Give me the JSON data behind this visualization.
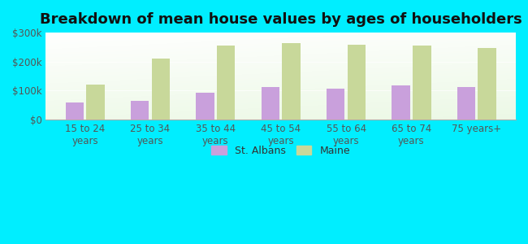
{
  "title": "Breakdown of mean house values by ages of householders",
  "categories": [
    "15 to 24\nyears",
    "25 to 34\nyears",
    "35 to 44\nyears",
    "45 to 54\nyears",
    "55 to 64\nyears",
    "65 to 74\nyears",
    "75 years+"
  ],
  "st_albans": [
    58000,
    65000,
    93000,
    113000,
    108000,
    118000,
    112000
  ],
  "maine": [
    120000,
    210000,
    255000,
    263000,
    257000,
    255000,
    248000
  ],
  "st_albans_color": "#c9a0dc",
  "maine_color": "#c8d89a",
  "background_color": "#00eeff",
  "ylim": [
    0,
    300000
  ],
  "yticks": [
    0,
    100000,
    200000,
    300000
  ],
  "ytick_labels": [
    "$0",
    "$100k",
    "$200k",
    "$300k"
  ],
  "legend_labels": [
    "St. Albans",
    "Maine"
  ],
  "bar_width": 0.28,
  "title_fontsize": 13,
  "tick_fontsize": 8.5,
  "legend_fontsize": 9
}
